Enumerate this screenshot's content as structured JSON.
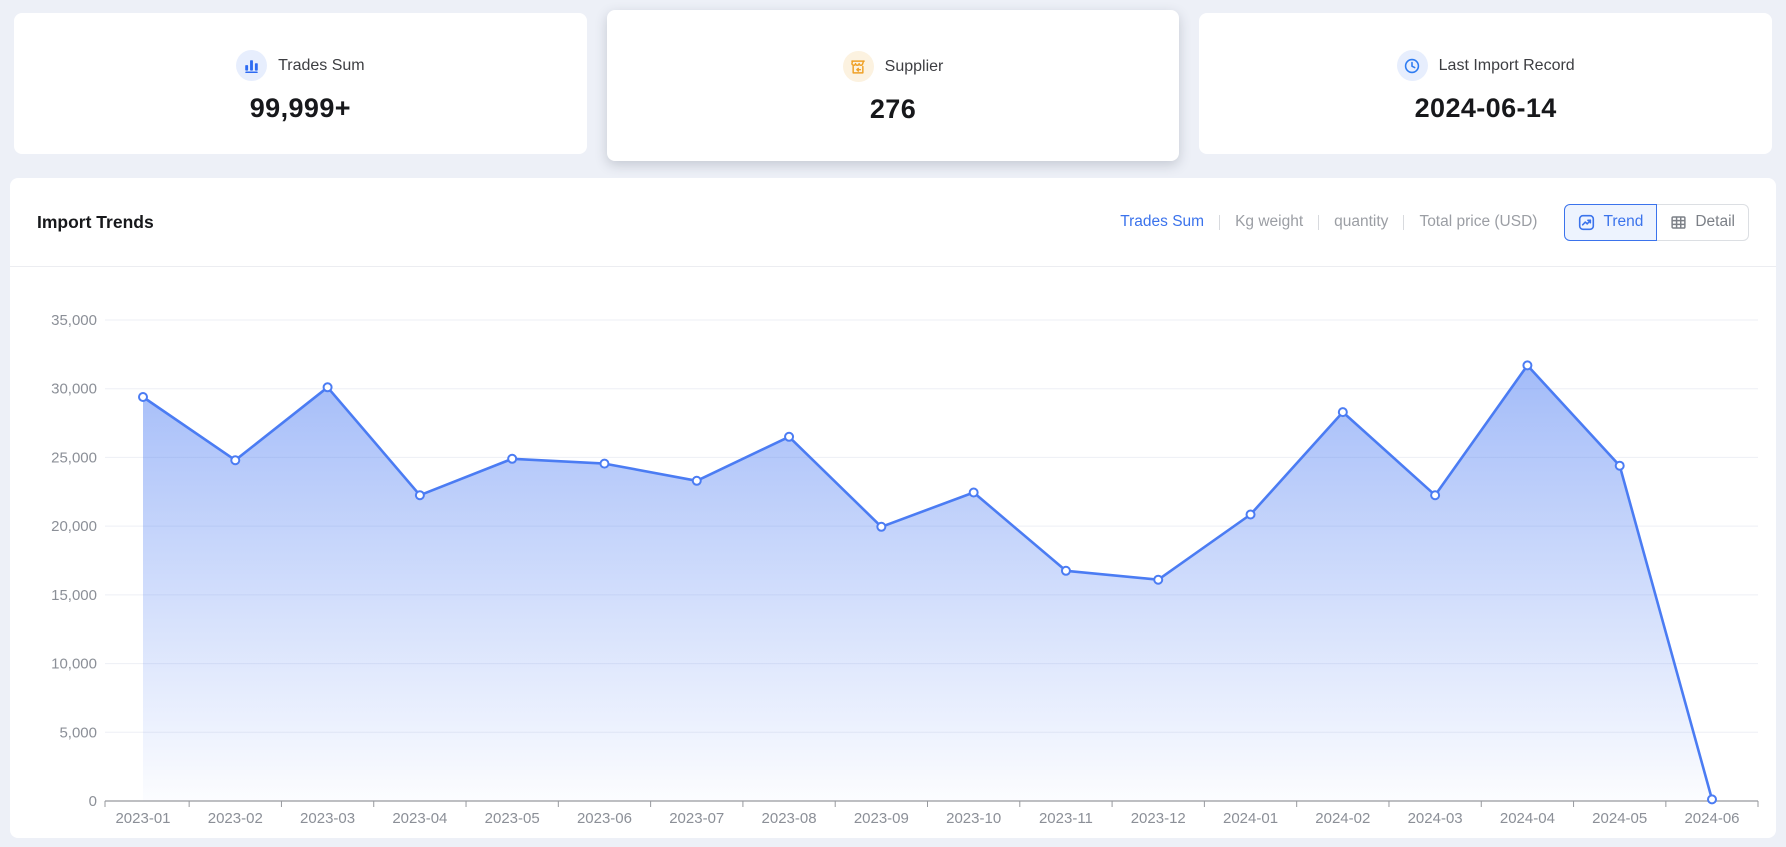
{
  "stats": [
    {
      "label": "Trades Sum",
      "value": "99,999+",
      "icon": "bar-chart-icon",
      "icon_color": "#2e6bf2",
      "circle": "blue"
    },
    {
      "label": "Supplier",
      "value": "276",
      "icon": "storefront-icon",
      "icon_color": "#efa127",
      "circle": "orange"
    },
    {
      "label": "Last Import Record",
      "value": "2024-06-14",
      "icon": "clock-icon",
      "icon_color": "#2e7cf2",
      "circle": "blue"
    }
  ],
  "chart_section": {
    "title": "Import Trends",
    "metric_tabs": [
      {
        "label": "Trades Sum",
        "active": true
      },
      {
        "label": "Kg weight",
        "active": false
      },
      {
        "label": "quantity",
        "active": false
      },
      {
        "label": "Total price (USD)",
        "active": false
      }
    ],
    "view_toggle": [
      {
        "label": "Trend",
        "icon": "trend-icon",
        "active": true
      },
      {
        "label": "Detail",
        "icon": "table-icon",
        "active": false
      }
    ]
  },
  "chart_data": {
    "type": "area",
    "title": "Import Trends",
    "xlabel": "",
    "ylabel": "",
    "x": [
      "2023-01",
      "2023-02",
      "2023-03",
      "2023-04",
      "2023-05",
      "2023-06",
      "2023-07",
      "2023-08",
      "2023-09",
      "2023-10",
      "2023-11",
      "2023-12",
      "2024-01",
      "2024-02",
      "2024-03",
      "2024-04",
      "2024-05",
      "2024-06"
    ],
    "series": [
      {
        "name": "Trades Sum",
        "values": [
          29400,
          24800,
          30100,
          22250,
          24900,
          24550,
          23300,
          26500,
          19950,
          22450,
          16750,
          16100,
          20850,
          28300,
          22250,
          31700,
          24400,
          120
        ]
      }
    ],
    "ylim": [
      0,
      35000
    ],
    "y_ticks": [
      "0",
      "5,000",
      "10,000",
      "15,000",
      "20,000",
      "25,000",
      "30,000",
      "35,000"
    ],
    "grid": true,
    "legend_position": "none"
  },
  "colors": {
    "accent_blue": "#3b73ec",
    "line_blue": "#4b7cf3",
    "area_top": "rgba(86,131,243,0.60)",
    "area_bottom": "rgba(86,131,243,0.02)",
    "icon_orange": "#efa127",
    "page_background": "#edf0f7",
    "gridline": "#edeff5",
    "axis_line": "#97999e",
    "axis_label": "#8b8f97"
  }
}
